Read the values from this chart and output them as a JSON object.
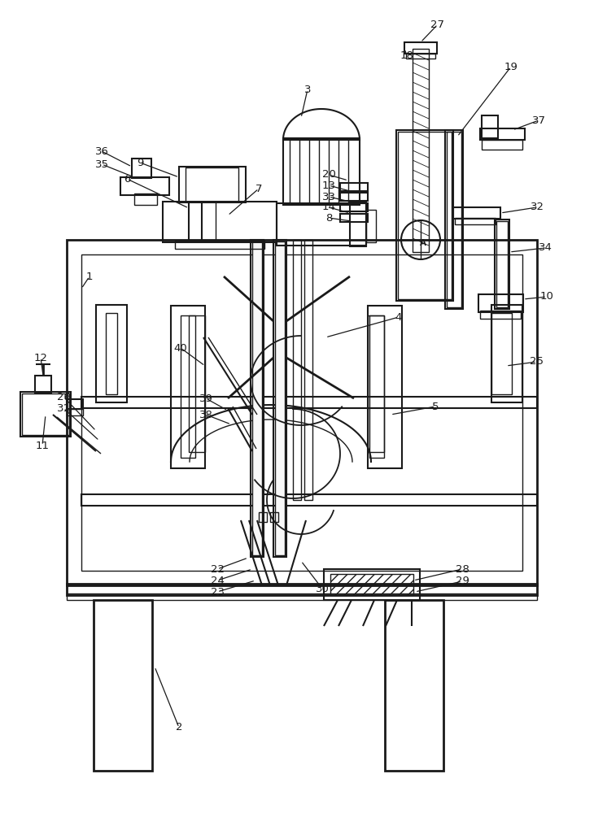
{
  "bg": "#ffffff",
  "lc": "#1a1a1a",
  "fig_w": 7.46,
  "fig_h": 10.0,
  "dpi": 100
}
